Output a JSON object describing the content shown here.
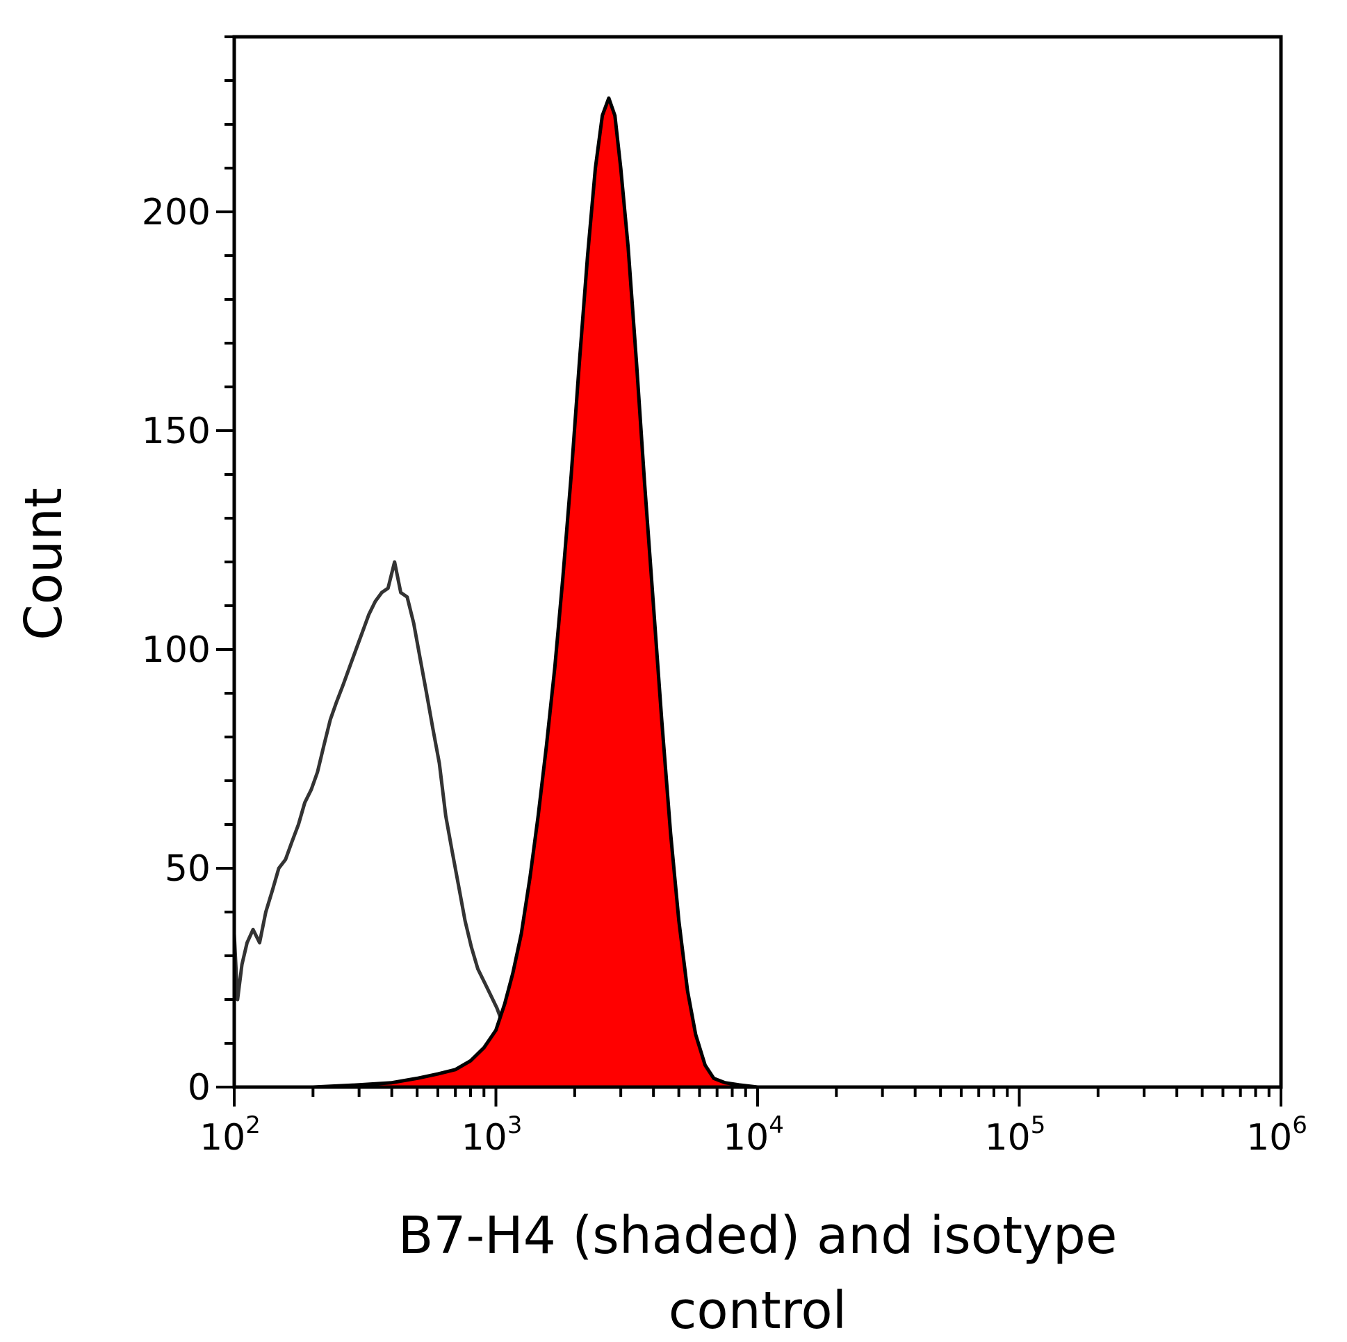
{
  "chart_data": {
    "type": "area",
    "xlabel_lines": [
      "B7-H4 (shaded) and isotype",
      "control"
    ],
    "ylabel": "Count",
    "x_scale": "log",
    "xlim": [
      100,
      1000000
    ],
    "ylim": [
      0,
      240
    ],
    "x_ticks": [
      {
        "base": "10",
        "exp": "2"
      },
      {
        "base": "10",
        "exp": "3"
      },
      {
        "base": "10",
        "exp": "4"
      },
      {
        "base": "10",
        "exp": "5"
      },
      {
        "base": "10",
        "exp": "6"
      }
    ],
    "y_ticks": [
      "0",
      "50",
      "100",
      "150",
      "200"
    ],
    "series": [
      {
        "style": "outline",
        "color": "#333333",
        "points": [
          [
            100,
            35
          ],
          [
            103,
            20
          ],
          [
            107,
            28
          ],
          [
            112,
            33
          ],
          [
            118,
            36
          ],
          [
            125,
            33
          ],
          [
            132,
            40
          ],
          [
            140,
            45
          ],
          [
            148,
            50
          ],
          [
            157,
            52
          ],
          [
            166,
            56
          ],
          [
            176,
            60
          ],
          [
            186,
            65
          ],
          [
            197,
            68
          ],
          [
            208,
            72
          ],
          [
            220,
            78
          ],
          [
            233,
            84
          ],
          [
            246,
            88
          ],
          [
            261,
            92
          ],
          [
            276,
            96
          ],
          [
            292,
            100
          ],
          [
            309,
            104
          ],
          [
            327,
            108
          ],
          [
            346,
            111
          ],
          [
            366,
            113
          ],
          [
            387,
            114
          ],
          [
            410,
            120
          ],
          [
            433,
            113
          ],
          [
            458,
            112
          ],
          [
            485,
            106
          ],
          [
            513,
            98
          ],
          [
            543,
            90
          ],
          [
            574,
            82
          ],
          [
            608,
            74
          ],
          [
            643,
            62
          ],
          [
            680,
            54
          ],
          [
            720,
            46
          ],
          [
            762,
            38
          ],
          [
            806,
            32
          ],
          [
            853,
            27
          ],
          [
            903,
            24
          ],
          [
            955,
            21
          ],
          [
            1010,
            18
          ],
          [
            1069,
            14
          ],
          [
            1131,
            9
          ],
          [
            1197,
            5
          ],
          [
            1267,
            3
          ],
          [
            1340,
            2
          ],
          [
            1418,
            1
          ],
          [
            1500,
            1
          ],
          [
            1600,
            0
          ]
        ]
      },
      {
        "style": "filled",
        "color": "#ff0000",
        "outline_color": "#000000",
        "points": [
          [
            100,
            0
          ],
          [
            200,
            0
          ],
          [
            300,
            0.5
          ],
          [
            400,
            1
          ],
          [
            500,
            2
          ],
          [
            600,
            3
          ],
          [
            700,
            4
          ],
          [
            800,
            6
          ],
          [
            900,
            9
          ],
          [
            1000,
            13
          ],
          [
            1080,
            19
          ],
          [
            1160,
            26
          ],
          [
            1250,
            35
          ],
          [
            1350,
            48
          ],
          [
            1450,
            62
          ],
          [
            1560,
            78
          ],
          [
            1680,
            96
          ],
          [
            1800,
            116
          ],
          [
            1940,
            140
          ],
          [
            2080,
            165
          ],
          [
            2240,
            190
          ],
          [
            2400,
            210
          ],
          [
            2550,
            222
          ],
          [
            2700,
            226
          ],
          [
            2850,
            222
          ],
          [
            3000,
            210
          ],
          [
            3200,
            192
          ],
          [
            3450,
            165
          ],
          [
            3700,
            138
          ],
          [
            4000,
            110
          ],
          [
            4300,
            84
          ],
          [
            4650,
            58
          ],
          [
            5000,
            38
          ],
          [
            5400,
            22
          ],
          [
            5800,
            12
          ],
          [
            6300,
            5
          ],
          [
            6800,
            2
          ],
          [
            7500,
            1
          ],
          [
            8500,
            0.5
          ],
          [
            10000,
            0
          ]
        ]
      }
    ]
  }
}
